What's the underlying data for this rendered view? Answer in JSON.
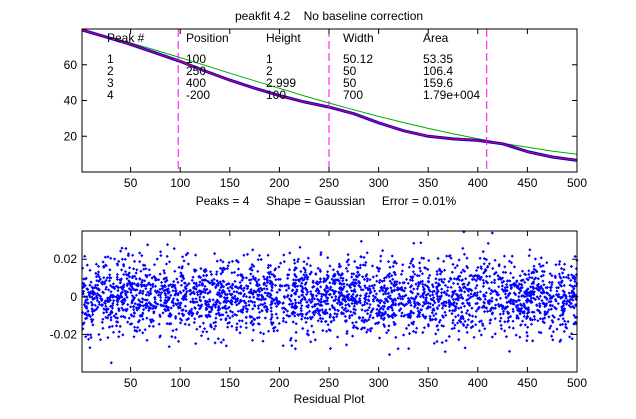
{
  "figure": {
    "title": "peakfit 4.2    No baseline correction",
    "fit_summary": "Peaks = 4     Shape = Gaussian     Error = 0.01%",
    "residual_label": "Residual Plot"
  },
  "results_table": {
    "headers": [
      "Peak #",
      "Position",
      "Height",
      "Width",
      "Area"
    ],
    "rows": [
      [
        "1",
        "100",
        "1",
        "50.12",
        "53.35"
      ],
      [
        "2",
        "250",
        "2",
        "50",
        "106.4"
      ],
      [
        "3",
        "400",
        "2.999",
        "50",
        "159.6"
      ],
      [
        "4",
        "-200",
        "100",
        "700",
        "1.79e+004"
      ]
    ]
  },
  "chart_data": [
    {
      "type": "line",
      "panel": "fit",
      "xlim": [
        1,
        500
      ],
      "ylim": [
        0,
        80
      ],
      "x_ticks": [
        50,
        100,
        150,
        200,
        250,
        300,
        350,
        400,
        450,
        500
      ],
      "y_ticks": [
        20,
        40,
        60
      ],
      "grid": false,
      "x": [
        1,
        25,
        50,
        75,
        100,
        125,
        150,
        175,
        200,
        225,
        250,
        275,
        300,
        325,
        350,
        375,
        400,
        425,
        450,
        475,
        500
      ],
      "series": [
        {
          "color": "#0000ff",
          "values": [
            79.5,
            75.6,
            71.4,
            66.7,
            61.9,
            56.5,
            51.4,
            46.9,
            42.8,
            39.2,
            36.3,
            32.6,
            27.5,
            23.1,
            20.0,
            18.5,
            17.7,
            15.8,
            11.4,
            8.4,
            6.5
          ]
        },
        {
          "color": "#ff0000",
          "values": [
            79.5,
            75.6,
            71.4,
            66.7,
            61.9,
            56.5,
            51.4,
            46.9,
            42.8,
            39.2,
            36.3,
            32.6,
            27.5,
            23.1,
            20.0,
            18.5,
            17.7,
            15.8,
            11.4,
            8.4,
            6.5
          ]
        },
        {
          "color": "#00aa00",
          "values": [
            79.5,
            76.1,
            72.3,
            68.2,
            64.0,
            59.7,
            55.3,
            51.0,
            46.8,
            42.6,
            38.6,
            34.8,
            31.1,
            27.7,
            24.4,
            21.4,
            18.6,
            16.1,
            13.8,
            11.7,
            9.9
          ]
        }
      ],
      "vlines": {
        "color": "#ff00ff",
        "style": "dashed",
        "x": [
          98,
          250,
          409
        ]
      }
    },
    {
      "type": "scatter",
      "panel": "residual",
      "xlim": [
        1,
        500
      ],
      "ylim": [
        -0.04,
        0.035
      ],
      "x_ticks": [
        50,
        100,
        150,
        200,
        250,
        300,
        350,
        400,
        450,
        500
      ],
      "y_ticks": [
        -0.02,
        0,
        0.02
      ],
      "y_tick_labels": [
        "-0.02",
        "0",
        "0.02"
      ],
      "grid": false,
      "marker_color": "#0000ff",
      "n_points": 3000,
      "mean": 0,
      "std": 0.01,
      "seed": 42
    }
  ]
}
